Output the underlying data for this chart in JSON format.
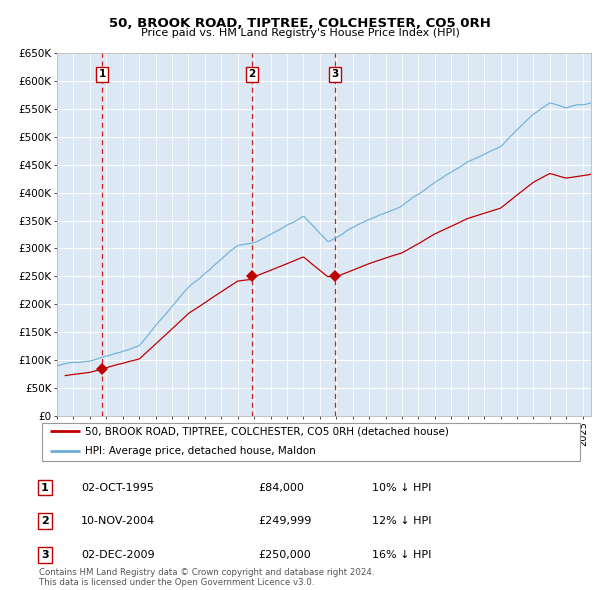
{
  "title": "50, BROOK ROAD, TIPTREE, COLCHESTER, CO5 0RH",
  "subtitle": "Price paid vs. HM Land Registry's House Price Index (HPI)",
  "ylabel_ticks": [
    "£0",
    "£50K",
    "£100K",
    "£150K",
    "£200K",
    "£250K",
    "£300K",
    "£350K",
    "£400K",
    "£450K",
    "£500K",
    "£550K",
    "£600K",
    "£650K"
  ],
  "ytick_values": [
    0,
    50000,
    100000,
    150000,
    200000,
    250000,
    300000,
    350000,
    400000,
    450000,
    500000,
    550000,
    600000,
    650000
  ],
  "hpi_color": "#6baed6",
  "price_color": "#c00000",
  "bg_color": "#dce9f5",
  "grid_color": "#ffffff",
  "sale_points": [
    {
      "date": 1995.75,
      "price": 84000,
      "label": "1"
    },
    {
      "date": 2004.86,
      "price": 249999,
      "label": "2"
    },
    {
      "date": 2009.92,
      "price": 250000,
      "label": "3"
    }
  ],
  "legend_line1": "50, BROOK ROAD, TIPTREE, COLCHESTER, CO5 0RH (detached house)",
  "legend_line2": "HPI: Average price, detached house, Maldon",
  "table_rows": [
    {
      "num": "1",
      "date": "02-OCT-1995",
      "price": "£84,000",
      "hpi": "10% ↓ HPI"
    },
    {
      "num": "2",
      "date": "10-NOV-2004",
      "price": "£249,999",
      "hpi": "12% ↓ HPI"
    },
    {
      "num": "3",
      "date": "02-DEC-2009",
      "price": "£250,000",
      "hpi": "16% ↓ HPI"
    }
  ],
  "footnote": "Contains HM Land Registry data © Crown copyright and database right 2024.\nThis data is licensed under the Open Government Licence v3.0.",
  "xmin": 1993,
  "xmax": 2025.5,
  "ymin": 0,
  "ymax": 650000
}
